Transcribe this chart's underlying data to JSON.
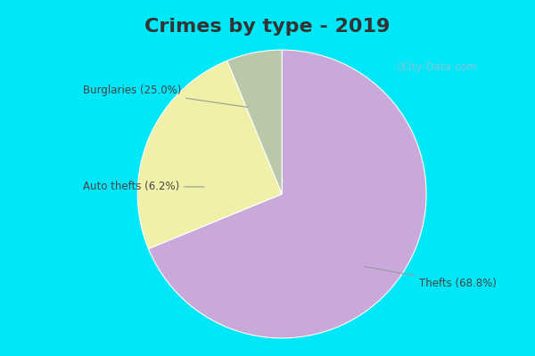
{
  "title": "Crimes by type - 2019",
  "slices": [
    {
      "label": "Thefts (68.8%)",
      "value": 68.8,
      "color": "#c9a9d9"
    },
    {
      "label": "Burglaries (25.0%)",
      "value": 25.0,
      "color": "#f0f0a8"
    },
    {
      "label": "Auto thefts (6.2%)",
      "value": 6.2,
      "color": "#b8c8a8"
    }
  ],
  "background_cyan": "#00e8f8",
  "background_main": "#cceedd",
  "title_fontsize": 16,
  "title_color": "#333333",
  "watermark": "City-Data.com",
  "startangle": 90,
  "label_fontsize": 8.5
}
